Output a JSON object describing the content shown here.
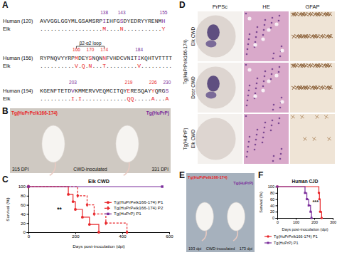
{
  "panels": {
    "A": {
      "panel_label": "A",
      "rows": [
        {
          "species": "Human",
          "start": 120,
          "start_label": "(120)",
          "sequence": "AVVGGLGGYMLGSAMSRPIIHFGSDYEDRYYRENMH",
          "elk_species": "Elk",
          "elk": "..................M....N...........Y",
          "marks": [
            138,
            143,
            155
          ],
          "mark_colors": [
            "#7b2d9b",
            "#7b2d9b",
            "#7b2d9b"
          ]
        },
        {
          "species": "Human",
          "start": 156,
          "start_label": "(156)",
          "sequence": "RYPNQVYYRPMDEYSNQNNFVHDCVNITIKQHTVTTTT",
          "elk_species": "Elk",
          "elk": "..........V.Q.N...T.........V.........",
          "marks": [
            166,
            170,
            174,
            184
          ],
          "mark_colors": [
            "#e8262a",
            "#e8262a",
            "#e8262a",
            "#7b2d9b"
          ],
          "loop": {
            "label": "β2-α2 loop",
            "from": 166,
            "to": 174
          }
        },
        {
          "species": "Human",
          "start": 194,
          "start_label": "(194)",
          "sequence": "KGENFTETDVKMMERVVEQMCITQYERESQAYYQRGS",
          "elk_species": "Elk",
          "elk": ".........I.I.............QQ.....A...A",
          "marks": [
            203,
            219,
            226,
            230
          ],
          "mark_colors": [
            "#7b2d9b",
            "#e8262a",
            "#e8262a",
            "#7b2d9b"
          ]
        }
      ]
    },
    "B": {
      "panel_label": "B",
      "mice": [
        {
          "label": "Tg(HuPrPelk166-174)",
          "color": "#e8262a",
          "time": "315 DPI"
        },
        {
          "label": "Tg(HuPrP)",
          "color": "#7b2d9b",
          "time": "331 DPI"
        }
      ],
      "caption": "CWD-inoculated"
    },
    "D": {
      "panel_label": "D",
      "columns": [
        "PrPSc",
        "HE",
        "GFAP"
      ],
      "rows": [
        "Elk CWD",
        "Deer CWD",
        "Elk CWD"
      ],
      "groups": [
        {
          "text": "Tg(HuPrPelk166-174)",
          "span": 2
        },
        {
          "text": "Tg(HuPrP)",
          "span": 1
        }
      ]
    },
    "E": {
      "panel_label": "E",
      "mice": [
        {
          "label": "Tg(HuPrPelk166-174)",
          "color": "#e8262a",
          "time": "193 dpi"
        },
        {
          "label": "Tg(HuPrP)",
          "color": "#7b2d9b",
          "time": "173 dpi"
        }
      ],
      "caption": "CWD-inoculated"
    }
  },
  "chart_data": [
    {
      "type": "line",
      "panel_label": "C",
      "title": "Elk CWD",
      "x_label": "Days post-inoculation (dpi)",
      "y_label": "Survival (%)",
      "xlim": [
        0,
        600
      ],
      "xticks": [
        0,
        200,
        400,
        600
      ],
      "ylim": [
        0,
        100
      ],
      "yticks": [
        0,
        20,
        40,
        60,
        80,
        100
      ],
      "legend": "right",
      "annotations": [
        "**"
      ],
      "series": [
        {
          "name": "Tg(HuPrPelk166-174) P1",
          "color": "#e8262a",
          "marker": "circle",
          "line_style": "solid",
          "x": [
            0,
            170,
            190,
            200,
            230,
            260,
            300
          ],
          "values": [
            100,
            83,
            67,
            50,
            33,
            17,
            0
          ]
        },
        {
          "name": "Tg(HuPrPelk166-174) P2",
          "color": "#e8262a",
          "marker": "diamond",
          "line_style": "dashed",
          "x": [
            0,
            210,
            250,
            280,
            330,
            420
          ],
          "values": [
            100,
            80,
            60,
            40,
            20,
            0
          ]
        },
        {
          "name": "Tg(HuPrP) P1",
          "color": "#7b2d9b",
          "marker": "square",
          "line_style": "solid",
          "x": [
            0,
            570
          ],
          "values": [
            100,
            100
          ]
        }
      ]
    },
    {
      "type": "line",
      "panel_label": "F",
      "title": "Human CJD",
      "x_label": "Days post-inoculation (dpi)",
      "y_label": "Survival (%)",
      "xlim": [
        0,
        300
      ],
      "xticks": [
        0,
        100,
        200,
        300
      ],
      "ylim": [
        0,
        100
      ],
      "yticks": [
        0,
        20,
        40,
        60,
        80,
        100
      ],
      "legend": "bottom",
      "annotations": [
        "***"
      ],
      "series": [
        {
          "name": "Tg(HuPrPelk166-174) P1",
          "color": "#e8262a",
          "marker": "circle",
          "line_style": "solid",
          "x": [
            0,
            225,
            228,
            232,
            240
          ],
          "values": [
            100,
            80,
            60,
            20,
            0
          ]
        },
        {
          "name": "Tg(HuPrP) P1",
          "color": "#7b2d9b",
          "marker": "square",
          "line_style": "solid",
          "x": [
            0,
            150,
            160,
            170,
            180,
            185
          ],
          "values": [
            100,
            80,
            60,
            40,
            20,
            0
          ]
        }
      ]
    }
  ]
}
